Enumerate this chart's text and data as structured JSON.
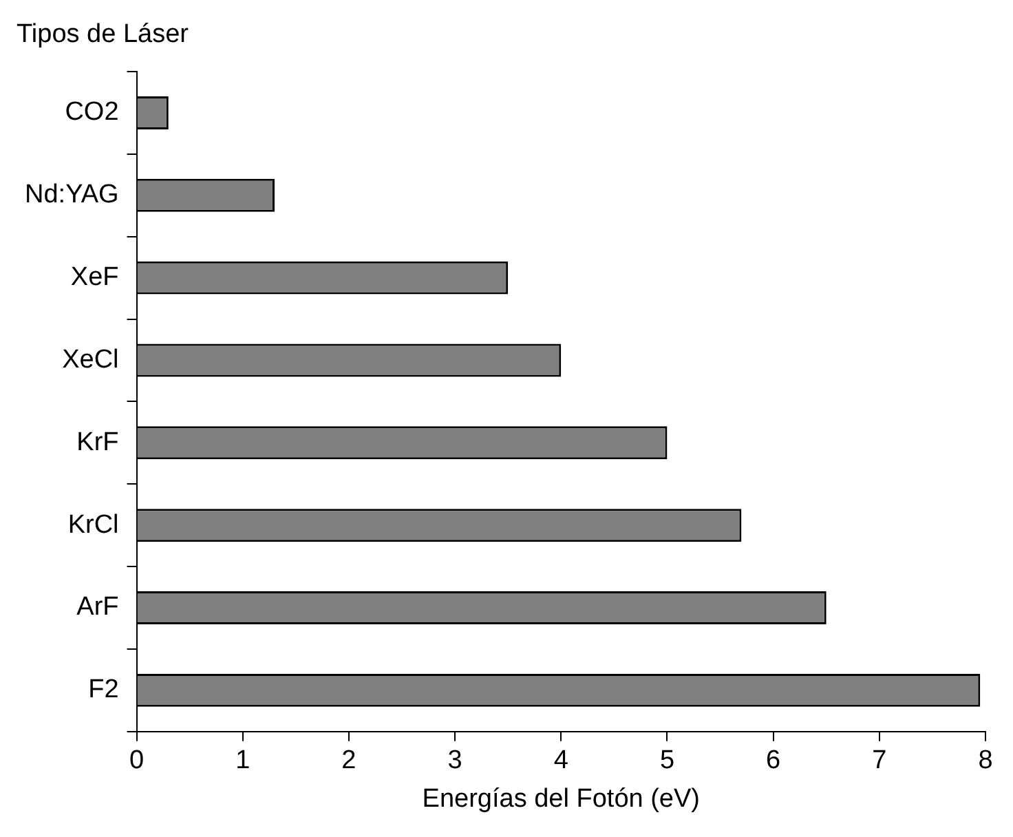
{
  "chart_data": {
    "type": "bar",
    "orientation": "horizontal",
    "ylabel": "Tipos de Láser",
    "xlabel": "Energías del Fotón (eV)",
    "categories": [
      "CO2",
      "Nd:YAG",
      "XeF",
      "XeCl",
      "KrF",
      "KrCl",
      "ArF",
      "F2"
    ],
    "values": [
      0.3,
      1.3,
      3.5,
      4.0,
      5.0,
      5.7,
      6.5,
      7.95
    ],
    "color": "#808080",
    "xlim": [
      0,
      8
    ],
    "xticks": [
      0,
      1,
      2,
      3,
      4,
      5,
      6,
      7,
      8
    ],
    "grid": false,
    "legend": false
  }
}
